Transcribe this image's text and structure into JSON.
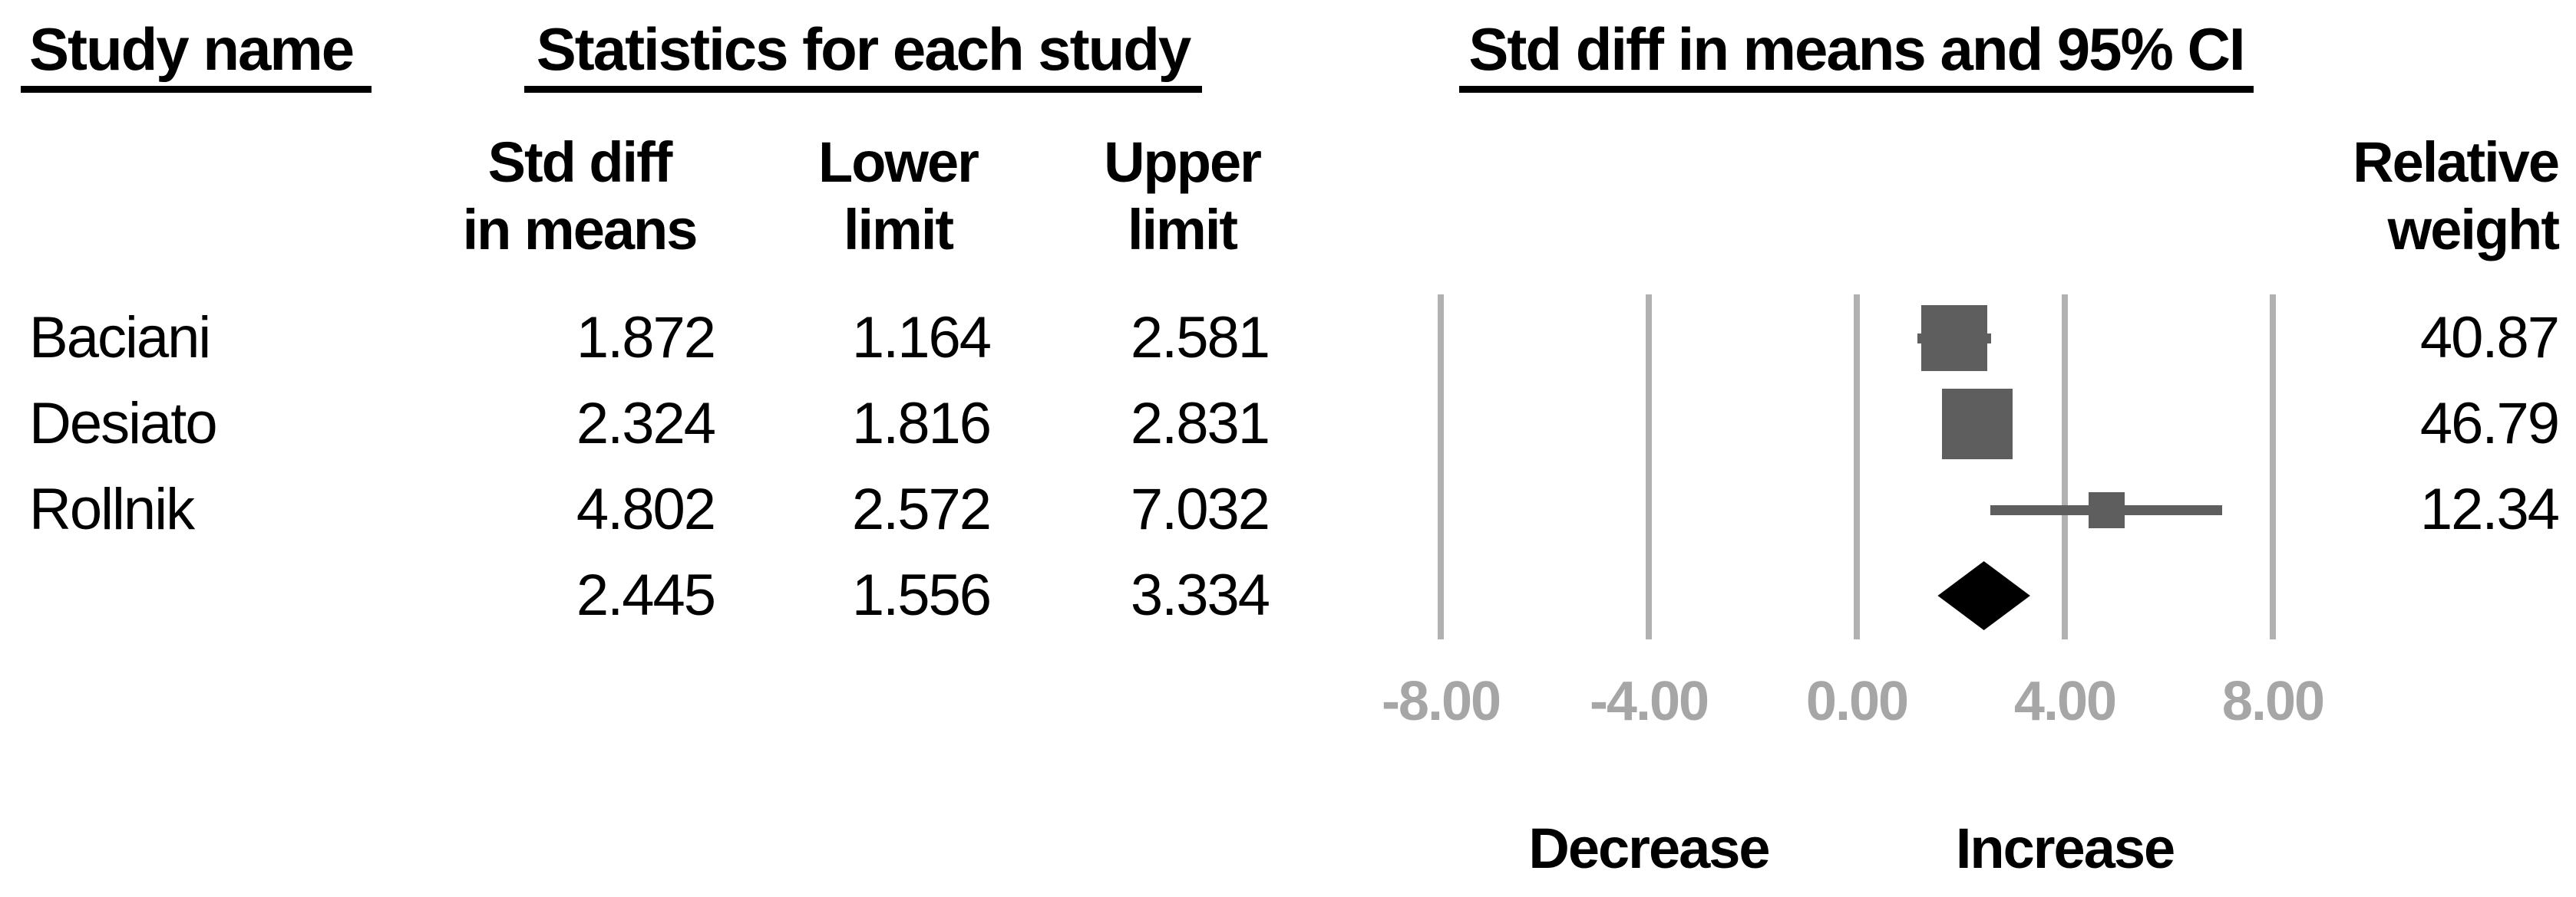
{
  "headers": {
    "study_name": "Study name",
    "statistics": "Statistics for each study",
    "ci": "Std diff in means and 95% CI"
  },
  "column_headers": {
    "std_diff": "Std diff\nin means",
    "lower": "Lower\nlimit",
    "upper": "Upper\nlimit",
    "relative": "Relative\nweight"
  },
  "rows": [
    {
      "name": "Baciani",
      "std_diff": "1.872",
      "lower": "1.164",
      "upper": "2.581",
      "weight": "40.87"
    },
    {
      "name": "Desiato",
      "std_diff": "2.324",
      "lower": "1.816",
      "upper": "2.831",
      "weight": "46.79"
    },
    {
      "name": "Rollnik",
      "std_diff": "4.802",
      "lower": "2.572",
      "upper": "7.032",
      "weight": "12.34"
    },
    {
      "name": "",
      "std_diff": "2.445",
      "lower": "1.556",
      "upper": "3.334",
      "weight": ""
    }
  ],
  "axis": {
    "tick_labels": [
      "-8.00",
      "-4.00",
      "0.00",
      "4.00",
      "8.00"
    ]
  },
  "footer": {
    "decrease": "Decrease",
    "increase": "Increase"
  },
  "chart_data": {
    "type": "forest",
    "title": "Std diff in means and 95% CI",
    "x_axis": {
      "min": -8,
      "max": 8,
      "ticks": [
        -8,
        -4,
        0,
        4,
        8
      ],
      "tick_labels": [
        "-8.00",
        "-4.00",
        "0.00",
        "4.00",
        "8.00"
      ],
      "grid": true
    },
    "studies": [
      {
        "name": "Baciani",
        "std_diff_in_means": 1.872,
        "lower_limit": 1.164,
        "upper_limit": 2.581,
        "relative_weight": 40.87
      },
      {
        "name": "Desiato",
        "std_diff_in_means": 2.324,
        "lower_limit": 1.816,
        "upper_limit": 2.831,
        "relative_weight": 46.79
      },
      {
        "name": "Rollnik",
        "std_diff_in_means": 4.802,
        "lower_limit": 2.572,
        "upper_limit": 7.032,
        "relative_weight": 12.34
      }
    ],
    "overall": {
      "std_diff_in_means": 2.445,
      "lower_limit": 1.556,
      "upper_limit": 3.334
    },
    "direction_labels": {
      "negative": "Decrease",
      "positive": "Increase"
    },
    "colors": {
      "marker": "#5e5e5e",
      "gridline": "#b1b1b1",
      "tick_label": "#a6a6a6",
      "overall_diamond": "#000000"
    }
  }
}
